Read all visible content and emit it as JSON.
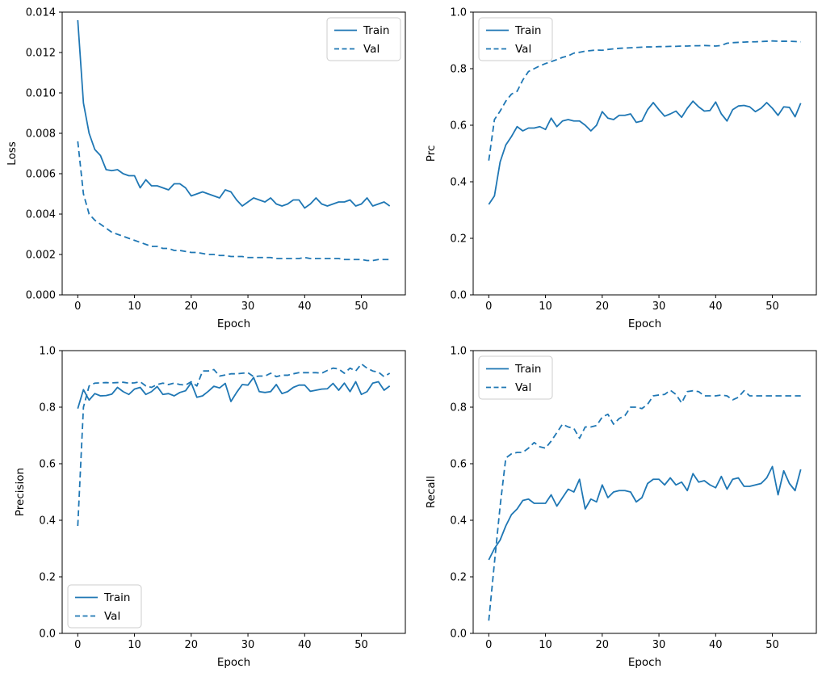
{
  "figure": {
    "background_color": "#ffffff",
    "line_color": "#1f77b4",
    "train_label": "Train",
    "val_label": "Val"
  },
  "chart_data": [
    {
      "type": "line",
      "name": "loss",
      "xlabel": "Epoch",
      "ylabel": "Loss",
      "xlim": [
        -2.75,
        57.75
      ],
      "ylim": [
        0,
        0.014
      ],
      "grid": false,
      "legend_position": "upper-right",
      "xticks": [
        0,
        10,
        20,
        30,
        40,
        50
      ],
      "xtick_labels": [
        "0",
        "10",
        "20",
        "30",
        "40",
        "50"
      ],
      "yticks": [
        0,
        0.002,
        0.004,
        0.006,
        0.008,
        0.01,
        0.012,
        0.014
      ],
      "ytick_labels": [
        "0.000",
        "0.002",
        "0.004",
        "0.006",
        "0.008",
        "0.010",
        "0.012",
        "0.014"
      ],
      "x": [
        0,
        1,
        2,
        3,
        4,
        5,
        6,
        7,
        8,
        9,
        10,
        11,
        12,
        13,
        14,
        15,
        16,
        17,
        18,
        19,
        20,
        21,
        22,
        23,
        24,
        25,
        26,
        27,
        28,
        29,
        30,
        31,
        32,
        33,
        34,
        35,
        36,
        37,
        38,
        39,
        40,
        41,
        42,
        43,
        44,
        45,
        46,
        47,
        48,
        49,
        50,
        51,
        52,
        53,
        54,
        55
      ],
      "series": [
        {
          "name": "Train",
          "style": "solid",
          "values": [
            0.0136,
            0.0095,
            0.008,
            0.0072,
            0.0069,
            0.0062,
            0.00615,
            0.0062,
            0.006,
            0.0059,
            0.0059,
            0.0053,
            0.0057,
            0.0054,
            0.0054,
            0.0053,
            0.0052,
            0.0055,
            0.0055,
            0.0053,
            0.0049,
            0.005,
            0.0051,
            0.005,
            0.0049,
            0.0048,
            0.0052,
            0.0051,
            0.0047,
            0.0044,
            0.0046,
            0.0048,
            0.0047,
            0.0046,
            0.0048,
            0.0045,
            0.0044,
            0.0045,
            0.0047,
            0.0047,
            0.0043,
            0.0045,
            0.0048,
            0.0045,
            0.0044,
            0.0045,
            0.0046,
            0.0046,
            0.0047,
            0.0044,
            0.0045,
            0.0048,
            0.0044,
            0.0045,
            0.0046,
            0.0044
          ]
        },
        {
          "name": "Val",
          "style": "dashed",
          "values": [
            0.0076,
            0.005,
            0.004,
            0.0037,
            0.0035,
            0.0033,
            0.0031,
            0.003,
            0.0029,
            0.0028,
            0.0027,
            0.0026,
            0.0025,
            0.0024,
            0.0024,
            0.0023,
            0.0023,
            0.0022,
            0.0022,
            0.00215,
            0.0021,
            0.0021,
            0.00205,
            0.002,
            0.002,
            0.00195,
            0.00195,
            0.0019,
            0.0019,
            0.0019,
            0.00185,
            0.00185,
            0.00185,
            0.00185,
            0.00185,
            0.0018,
            0.0018,
            0.0018,
            0.0018,
            0.0018,
            0.00185,
            0.0018,
            0.0018,
            0.0018,
            0.0018,
            0.0018,
            0.0018,
            0.00175,
            0.00175,
            0.00175,
            0.00175,
            0.0017,
            0.0017,
            0.00175,
            0.00175,
            0.00175
          ]
        }
      ]
    },
    {
      "type": "line",
      "name": "prc",
      "xlabel": "Epoch",
      "ylabel": "Prc",
      "xlim": [
        -2.75,
        57.75
      ],
      "ylim": [
        0,
        1.0
      ],
      "grid": false,
      "legend_position": "upper-left",
      "xticks": [
        0,
        10,
        20,
        30,
        40,
        50
      ],
      "xtick_labels": [
        "0",
        "10",
        "20",
        "30",
        "40",
        "50"
      ],
      "yticks": [
        0,
        0.2,
        0.4,
        0.6,
        0.8,
        1.0
      ],
      "ytick_labels": [
        "0.0",
        "0.2",
        "0.4",
        "0.6",
        "0.8",
        "1.0"
      ],
      "x": [
        0,
        1,
        2,
        3,
        4,
        5,
        6,
        7,
        8,
        9,
        10,
        11,
        12,
        13,
        14,
        15,
        16,
        17,
        18,
        19,
        20,
        21,
        22,
        23,
        24,
        25,
        26,
        27,
        28,
        29,
        30,
        31,
        32,
        33,
        34,
        35,
        36,
        37,
        38,
        39,
        40,
        41,
        42,
        43,
        44,
        45,
        46,
        47,
        48,
        49,
        50,
        51,
        52,
        53,
        54,
        55
      ],
      "series": [
        {
          "name": "Train",
          "style": "solid",
          "values": [
            0.32,
            0.35,
            0.47,
            0.53,
            0.56,
            0.595,
            0.58,
            0.59,
            0.59,
            0.595,
            0.585,
            0.625,
            0.595,
            0.615,
            0.62,
            0.615,
            0.615,
            0.6,
            0.58,
            0.6,
            0.648,
            0.625,
            0.62,
            0.635,
            0.635,
            0.64,
            0.61,
            0.615,
            0.655,
            0.68,
            0.655,
            0.632,
            0.64,
            0.65,
            0.628,
            0.66,
            0.685,
            0.665,
            0.65,
            0.652,
            0.682,
            0.64,
            0.615,
            0.655,
            0.668,
            0.67,
            0.665,
            0.648,
            0.66,
            0.68,
            0.66,
            0.635,
            0.665,
            0.663,
            0.63,
            0.678
          ]
        },
        {
          "name": "Val",
          "style": "dashed",
          "values": [
            0.475,
            0.62,
            0.65,
            0.685,
            0.71,
            0.72,
            0.76,
            0.79,
            0.8,
            0.81,
            0.818,
            0.825,
            0.832,
            0.84,
            0.845,
            0.855,
            0.858,
            0.862,
            0.864,
            0.866,
            0.865,
            0.868,
            0.87,
            0.872,
            0.873,
            0.874,
            0.875,
            0.876,
            0.877,
            0.877,
            0.878,
            0.878,
            0.879,
            0.879,
            0.88,
            0.88,
            0.881,
            0.881,
            0.882,
            0.881,
            0.88,
            0.882,
            0.89,
            0.892,
            0.893,
            0.894,
            0.895,
            0.895,
            0.896,
            0.897,
            0.898,
            0.897,
            0.897,
            0.897,
            0.896,
            0.895
          ]
        }
      ]
    },
    {
      "type": "line",
      "name": "precision",
      "xlabel": "Epoch",
      "ylabel": "Precision",
      "xlim": [
        -2.75,
        57.75
      ],
      "ylim": [
        0,
        1.0
      ],
      "grid": false,
      "legend_position": "lower-left",
      "xticks": [
        0,
        10,
        20,
        30,
        40,
        50
      ],
      "xtick_labels": [
        "0",
        "10",
        "20",
        "30",
        "40",
        "50"
      ],
      "yticks": [
        0,
        0.2,
        0.4,
        0.6,
        0.8,
        1.0
      ],
      "ytick_labels": [
        "0.0",
        "0.2",
        "0.4",
        "0.6",
        "0.8",
        "1.0"
      ],
      "x": [
        0,
        1,
        2,
        3,
        4,
        5,
        6,
        7,
        8,
        9,
        10,
        11,
        12,
        13,
        14,
        15,
        16,
        17,
        18,
        19,
        20,
        21,
        22,
        23,
        24,
        25,
        26,
        27,
        28,
        29,
        30,
        31,
        32,
        33,
        34,
        35,
        36,
        37,
        38,
        39,
        40,
        41,
        42,
        43,
        44,
        45,
        46,
        47,
        48,
        49,
        50,
        51,
        52,
        53,
        54,
        55
      ],
      "series": [
        {
          "name": "Train",
          "style": "solid",
          "values": [
            0.795,
            0.862,
            0.825,
            0.848,
            0.84,
            0.841,
            0.846,
            0.87,
            0.855,
            0.845,
            0.864,
            0.87,
            0.845,
            0.855,
            0.873,
            0.845,
            0.848,
            0.84,
            0.852,
            0.858,
            0.886,
            0.835,
            0.84,
            0.856,
            0.874,
            0.868,
            0.884,
            0.82,
            0.852,
            0.88,
            0.878,
            0.905,
            0.855,
            0.852,
            0.855,
            0.88,
            0.848,
            0.855,
            0.87,
            0.878,
            0.878,
            0.856,
            0.86,
            0.864,
            0.865,
            0.884,
            0.86,
            0.885,
            0.855,
            0.89,
            0.845,
            0.855,
            0.885,
            0.89,
            0.86,
            0.875
          ]
        },
        {
          "name": "Val",
          "style": "dashed",
          "values": [
            0.38,
            0.8,
            0.875,
            0.885,
            0.886,
            0.887,
            0.886,
            0.887,
            0.888,
            0.885,
            0.886,
            0.89,
            0.875,
            0.87,
            0.88,
            0.885,
            0.88,
            0.885,
            0.88,
            0.878,
            0.89,
            0.875,
            0.928,
            0.928,
            0.933,
            0.91,
            0.914,
            0.918,
            0.918,
            0.92,
            0.922,
            0.908,
            0.91,
            0.91,
            0.92,
            0.908,
            0.913,
            0.913,
            0.918,
            0.922,
            0.922,
            0.922,
            0.922,
            0.92,
            0.93,
            0.938,
            0.935,
            0.92,
            0.938,
            0.928,
            0.953,
            0.938,
            0.928,
            0.924,
            0.908,
            0.92
          ]
        }
      ]
    },
    {
      "type": "line",
      "name": "recall",
      "xlabel": "Epoch",
      "ylabel": "Recall",
      "xlim": [
        -2.75,
        57.75
      ],
      "ylim": [
        0,
        1.0
      ],
      "grid": false,
      "legend_position": "upper-left",
      "xticks": [
        0,
        10,
        20,
        30,
        40,
        50
      ],
      "xtick_labels": [
        "0",
        "10",
        "20",
        "30",
        "40",
        "50"
      ],
      "yticks": [
        0,
        0.2,
        0.4,
        0.6,
        0.8,
        1.0
      ],
      "ytick_labels": [
        "0.0",
        "0.2",
        "0.4",
        "0.6",
        "0.8",
        "1.0"
      ],
      "x": [
        0,
        1,
        2,
        3,
        4,
        5,
        6,
        7,
        8,
        9,
        10,
        11,
        12,
        13,
        14,
        15,
        16,
        17,
        18,
        19,
        20,
        21,
        22,
        23,
        24,
        25,
        26,
        27,
        28,
        29,
        30,
        31,
        32,
        33,
        34,
        35,
        36,
        37,
        38,
        39,
        40,
        41,
        42,
        43,
        44,
        45,
        46,
        47,
        48,
        49,
        50,
        51,
        52,
        53,
        54,
        55
      ],
      "series": [
        {
          "name": "Train",
          "style": "solid",
          "values": [
            0.26,
            0.3,
            0.33,
            0.38,
            0.42,
            0.44,
            0.47,
            0.475,
            0.46,
            0.46,
            0.46,
            0.49,
            0.45,
            0.48,
            0.51,
            0.5,
            0.545,
            0.44,
            0.475,
            0.465,
            0.525,
            0.48,
            0.5,
            0.505,
            0.505,
            0.5,
            0.465,
            0.48,
            0.53,
            0.545,
            0.545,
            0.525,
            0.55,
            0.525,
            0.535,
            0.505,
            0.565,
            0.535,
            0.54,
            0.525,
            0.515,
            0.555,
            0.51,
            0.545,
            0.55,
            0.52,
            0.52,
            0.525,
            0.53,
            0.55,
            0.59,
            0.49,
            0.575,
            0.53,
            0.505,
            0.58
          ]
        },
        {
          "name": "Val",
          "style": "dashed",
          "values": [
            0.045,
            0.25,
            0.45,
            0.62,
            0.635,
            0.64,
            0.64,
            0.655,
            0.675,
            0.66,
            0.655,
            0.68,
            0.71,
            0.74,
            0.73,
            0.725,
            0.69,
            0.73,
            0.73,
            0.735,
            0.765,
            0.775,
            0.74,
            0.76,
            0.77,
            0.8,
            0.8,
            0.795,
            0.81,
            0.84,
            0.843,
            0.845,
            0.86,
            0.845,
            0.815,
            0.855,
            0.858,
            0.855,
            0.84,
            0.84,
            0.84,
            0.843,
            0.84,
            0.826,
            0.835,
            0.858,
            0.84,
            0.84,
            0.84,
            0.84,
            0.84,
            0.84,
            0.84,
            0.84,
            0.84,
            0.84
          ]
        }
      ]
    }
  ]
}
